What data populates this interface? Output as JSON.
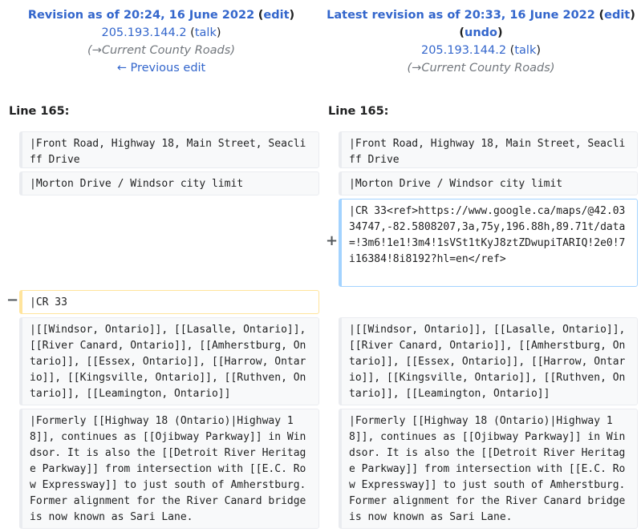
{
  "left_header": {
    "title": "Revision as of 20:24, 16 June 2022",
    "edit": "edit",
    "user": "205.193.144.2",
    "talk": "talk",
    "arrow": "→",
    "summary": "Current County Roads",
    "prev": "← Previous edit"
  },
  "right_header": {
    "title": "Latest revision as of 20:33, 16 June 2022",
    "edit": "edit",
    "undo": "undo",
    "user": "205.193.144.2",
    "talk": "talk",
    "arrow": "→",
    "summary": "Current County Roads"
  },
  "line_label_left": "Line 165:",
  "line_label_right": "Line 165:",
  "markers": {
    "minus": "−",
    "plus": "+"
  },
  "rows": {
    "front_road": "|Front Road, Highway 18, Main Street, Seacliff Drive",
    "morton": "|Morton Drive / Windsor city limit",
    "cr33_added": "|CR 33<ref>https://www.google.ca/maps/@42.0334747,-82.5808207,3a,75y,196.88h,89.71t/data=!3m6!1e1!3m4!1sVSt1tKyJ8ztZDwupiTARIQ!2e0!7i16384!8i8192?hl=en</ref>",
    "cr33_removed": "|CR 33",
    "places": "|[[Windsor, Ontario]], [[Lasalle, Ontario]], [[River Canard, Ontario]], [[Amherstburg, Ontario]], [[Essex, Ontario]], [[Harrow, Ontario]], [[Kingsville, Ontario]], [[Ruthven, Ontario]], [[Leamington, Ontario]]",
    "formerly": "|Formerly [[Highway 18 (Ontario)|Highway 18]], continues as [[Ojibway Parkway]] in Windsor. It is also the [[Detroit River Heritage Parkway]] from intersection with [[E.C. Row Expressway]] to just south of Amherstburg. Former alignment for the River Canard bridge is now known as Sari Lane."
  }
}
